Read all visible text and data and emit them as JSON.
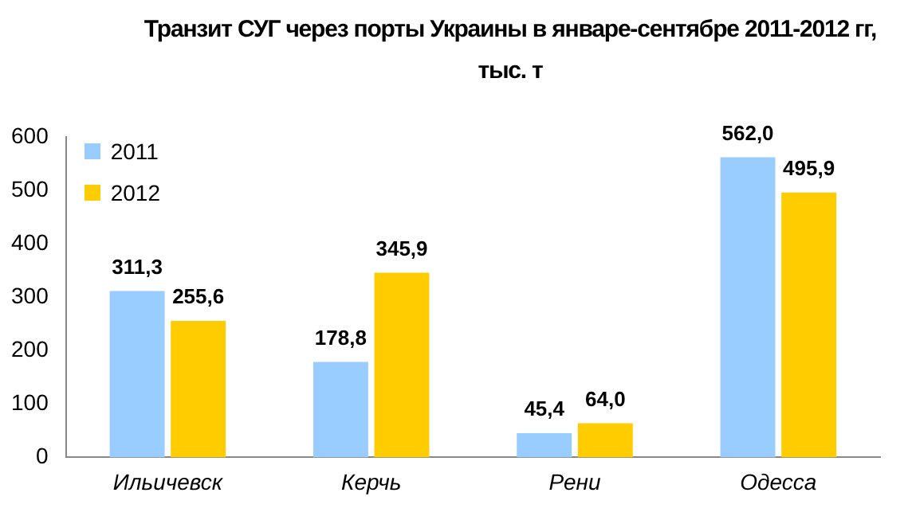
{
  "chart_data": {
    "type": "bar",
    "title": "Транзит СУГ через порты Украины в январе-сентябре 2011-2012 гг, тыс. т",
    "categories": [
      "Ильичевск",
      "Керчь",
      "Рени",
      "Одесса"
    ],
    "series": [
      {
        "name": "2011",
        "color": "#99ccff",
        "values": [
          311.3,
          178.8,
          45.4,
          562.0
        ],
        "value_labels": [
          "311,3",
          "178,8",
          "45,4",
          "562,0"
        ]
      },
      {
        "name": "2012",
        "color": "#ffcc00",
        "values": [
          255.6,
          345.9,
          64.0,
          495.9
        ],
        "value_labels": [
          "255,6",
          "345,9",
          "64,0",
          "495,9"
        ]
      }
    ],
    "ylim": [
      0,
      600
    ],
    "yticks": [
      0,
      100,
      200,
      300,
      400,
      500,
      600
    ],
    "grid": false,
    "legend": "top left"
  }
}
